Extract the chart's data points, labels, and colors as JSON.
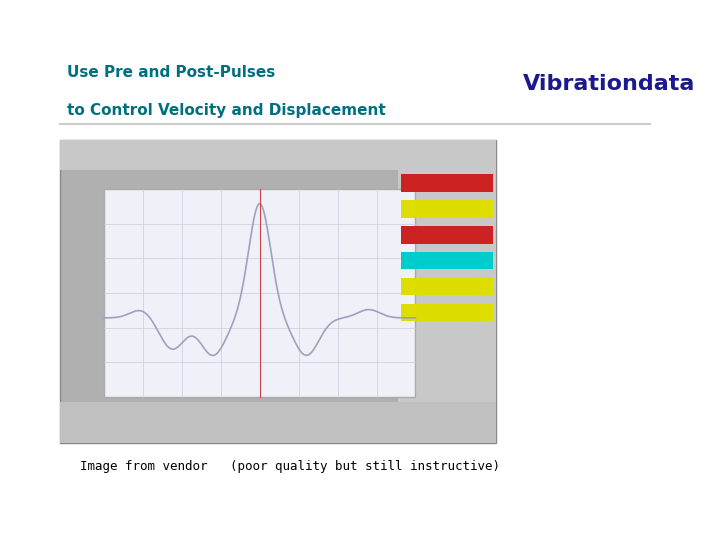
{
  "title_line1": "Use Pre and Post-Pulses",
  "title_line2": "to Control Velocity and Displacement",
  "title_color": "#007080",
  "brand_text": "Vibrationdata",
  "brand_color": "#1a1a8c",
  "separator_color": "#cccccc",
  "caption_text": "Image from vendor   (poor quality but still instructive)",
  "caption_color": "#000000",
  "bg_color": "#ffffff",
  "signal_color": "#a0a0c0",
  "red_line_color": "#cc4444"
}
